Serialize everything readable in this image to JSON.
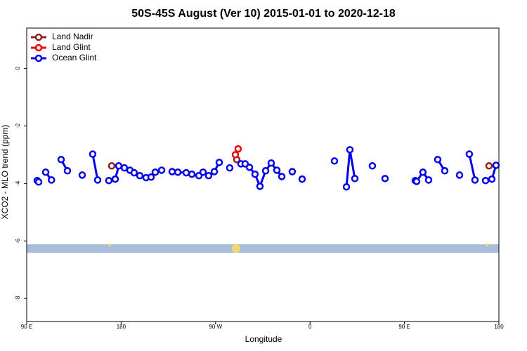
{
  "chart_data": {
    "type": "line",
    "title": "50S-45S August (Ver 10)   2015-01-01 to 2020-12-18",
    "x_label": "Longitude",
    "y_label": "XCO2 - MLO trend (ppm)",
    "xlim": [
      90,
      540
    ],
    "ylim": [
      -8.8,
      1.4
    ],
    "xticks": [
      {
        "value": 90,
        "label": "90 E"
      },
      180,
      {
        "value": 270,
        "label": "90 W"
      },
      {
        "value": 360,
        "label": "0"
      },
      {
        "value": 450,
        "label": "90 E"
      },
      {
        "value": 540,
        "label": "180"
      }
    ],
    "yticks": [
      0,
      -2,
      -4,
      -6,
      -8
    ],
    "legend": "top-left",
    "series": [
      {
        "name": "Land Nadir",
        "color": "#8b2323",
        "x": [
          171.0,
          null,
          290.2,
          null,
          530.6
        ],
        "values": [
          -3.39,
          null,
          -3.17,
          null,
          -3.39
        ]
      },
      {
        "name": "Land Glint",
        "color": "#ee0000",
        "x": [
          288.9,
          291.5
        ],
        "values": [
          -3.0,
          -2.8
        ]
      },
      {
        "name": "Ocean Glint",
        "color": "#0000ee",
        "x": [
          100.0,
          101.4,
          null,
          108.1,
          113.6,
          null,
          122.8,
          128.8,
          null,
          142.9,
          null,
          152.9,
          157.6,
          null,
          168.3,
          174.4,
          177.7,
          183.1,
          188.4,
          192.4,
          197.8,
          203.8,
          208.5,
          212.5,
          218.6,
          null,
          228.6,
          234.0,
          242.0,
          247.4,
          254.1,
          258.1,
          263.4,
          268.8,
          273.5,
          null,
          283.5,
          null,
          294.2,
          298.2,
          302.3,
          307.6,
          312.3,
          317.7,
          323.0,
          328.4,
          333.1,
          null,
          343.1,
          null,
          352.5,
          null,
          383.3,
          null,
          394.7,
          398.0,
          402.7,
          null,
          419.4,
          null,
          431.5,
          null,
          460.3,
          461.6,
          467.6,
          473.0,
          null,
          481.7,
          488.4,
          null,
          502.5,
          null,
          511.8,
          517.2,
          null,
          527.3,
          533.3,
          537.3
        ],
        "values": [
          -3.9,
          -3.95,
          null,
          -3.61,
          -3.88,
          null,
          -3.17,
          -3.56,
          null,
          -3.71,
          null,
          -2.98,
          -3.88,
          null,
          -3.9,
          -3.85,
          -3.39,
          -3.46,
          -3.54,
          -3.63,
          -3.73,
          -3.8,
          -3.78,
          -3.61,
          -3.54,
          null,
          -3.59,
          -3.61,
          -3.63,
          -3.68,
          -3.73,
          -3.61,
          -3.73,
          -3.59,
          -3.27,
          null,
          -3.46,
          null,
          -3.32,
          -3.32,
          -3.44,
          -3.68,
          -4.1,
          -3.56,
          -3.29,
          -3.54,
          -3.76,
          null,
          -3.59,
          null,
          -3.85,
          null,
          -3.22,
          null,
          -4.12,
          -2.83,
          -3.83,
          null,
          -3.39,
          null,
          -3.83,
          null,
          -3.9,
          -3.93,
          -3.61,
          -3.88,
          null,
          -3.17,
          -3.56,
          null,
          -3.71,
          null,
          -2.98,
          -3.88,
          null,
          -3.9,
          -3.85,
          -3.37
        ]
      }
    ]
  }
}
